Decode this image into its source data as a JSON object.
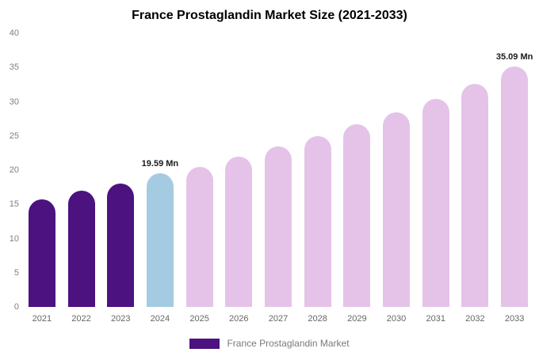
{
  "legend": {
    "label": "France Prostaglandin Market",
    "swatch_color": "#4B1280"
  },
  "chart_data": {
    "type": "bar",
    "title": "France Prostaglandin Market Size (2021-2033)",
    "categories": [
      "2021",
      "2022",
      "2023",
      "2024",
      "2025",
      "2026",
      "2027",
      "2028",
      "2029",
      "2030",
      "2031",
      "2032",
      "2033"
    ],
    "values": [
      15.7,
      17.0,
      18.0,
      19.59,
      20.5,
      22.0,
      23.5,
      25.0,
      26.7,
      28.4,
      30.4,
      32.6,
      35.09
    ],
    "bar_colors": [
      "#4B1280",
      "#4B1280",
      "#4B1280",
      "#A5CBE2",
      "#E5C3E9",
      "#E5C3E9",
      "#E5C3E9",
      "#E5C3E9",
      "#E5C3E9",
      "#E5C3E9",
      "#E5C3E9",
      "#E5C3E9",
      "#E5C3E9"
    ],
    "data_labels": {
      "2024": "19.59 Mn",
      "2033": "35.09 Mn"
    },
    "xlabel": "",
    "ylabel": "",
    "ylim": [
      0,
      40
    ],
    "yticks": [
      0,
      5,
      10,
      15,
      20,
      25,
      30,
      35,
      40
    ],
    "grid": false,
    "legend_entries": [
      "France Prostaglandin Market"
    ],
    "legend_position": "bottom"
  }
}
